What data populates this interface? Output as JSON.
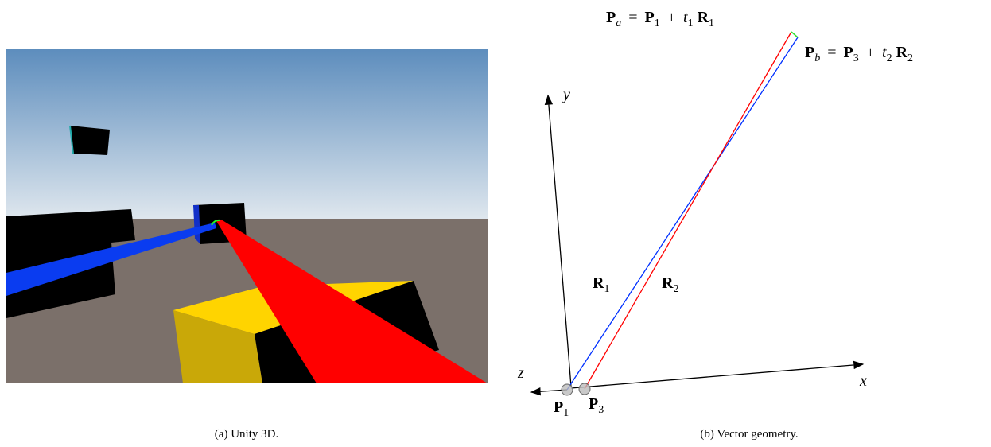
{
  "figure_a": {
    "caption": "(a) Unity 3D."
  },
  "figure_b": {
    "caption": "(b) Vector geometry.",
    "eq_a": [
      {
        "base": "P",
        "sub": "a"
      },
      {
        "base": "="
      },
      {
        "base": "P",
        "sub": "1"
      },
      {
        "base": "+"
      },
      {
        "base": "t",
        "sub": "1"
      },
      {
        "base": "R",
        "sub": "1"
      }
    ],
    "eq_b": [
      {
        "base": "P",
        "sub": "b"
      },
      {
        "base": "="
      },
      {
        "base": "P",
        "sub": "3"
      },
      {
        "base": "+"
      },
      {
        "base": "t",
        "sub": "2"
      },
      {
        "base": "R",
        "sub": "2"
      }
    ],
    "axes": {
      "x": "x",
      "y": "y",
      "z": "z"
    },
    "ray_1": {
      "base": "R",
      "sub": "1"
    },
    "ray_2": {
      "base": "R",
      "sub": "2"
    },
    "point_1": {
      "base": "P",
      "sub": "1"
    },
    "point_3": {
      "base": "P",
      "sub": "3"
    }
  }
}
